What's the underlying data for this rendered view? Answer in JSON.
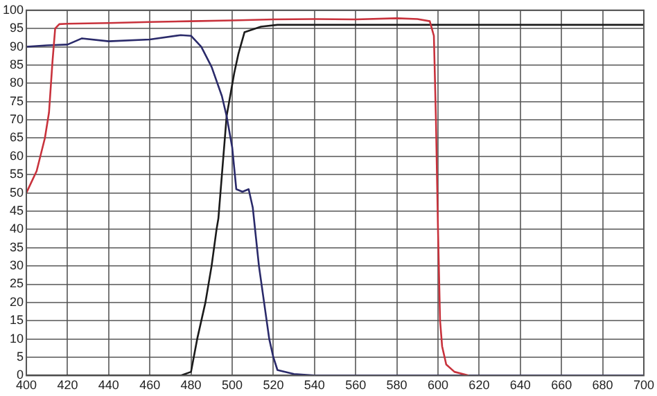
{
  "chart_data": {
    "type": "line",
    "xlim": [
      400,
      700
    ],
    "ylim": [
      0,
      100
    ],
    "xticks": [
      400,
      420,
      440,
      460,
      480,
      500,
      520,
      540,
      560,
      580,
      600,
      620,
      640,
      660,
      680,
      700
    ],
    "yticks": [
      0,
      5,
      10,
      15,
      20,
      25,
      30,
      35,
      40,
      45,
      50,
      55,
      60,
      65,
      70,
      75,
      80,
      85,
      90,
      95,
      100
    ],
    "grid": true,
    "legend": false,
    "marker": "none",
    "line_style": "solid",
    "series": [
      {
        "color": "#c8323c",
        "x": [
          400,
          405,
          409,
          411,
          412.7,
          414,
          416,
          420,
          440,
          460,
          480,
          500,
          520,
          540,
          560,
          580,
          590,
          596,
          598,
          599,
          600,
          601,
          602,
          604,
          608,
          615
        ],
        "values": [
          50,
          56,
          65,
          72,
          86,
          95,
          96.2,
          96.3,
          96.5,
          96.8,
          97,
          97.2,
          97.5,
          97.6,
          97.5,
          97.8,
          97.6,
          97,
          93,
          70,
          40,
          15,
          8,
          3,
          1,
          0
        ]
      },
      {
        "color": "#2a2a6a",
        "x": [
          400,
          410,
          420,
          427,
          440,
          460,
          475,
          480,
          485,
          490,
          495,
          497.3,
          500,
          502,
          505,
          508,
          510,
          513,
          516,
          518,
          520,
          522,
          530,
          540,
          700
        ],
        "values": [
          90,
          90.4,
          90.6,
          92.3,
          91.5,
          92,
          93.2,
          93,
          90,
          84.5,
          76.5,
          71,
          62.5,
          51,
          50.3,
          51,
          46,
          30,
          18,
          10,
          5,
          1.5,
          0.4,
          0,
          0
        ]
      },
      {
        "color": "#1a1a1a",
        "x": [
          400,
          475,
          480,
          483,
          487,
          490,
          492.4,
          493.3,
          497.3,
          501,
          503,
          506,
          514,
          522,
          560,
          600,
          700
        ],
        "values": [
          0,
          0,
          1,
          10,
          20,
          30,
          40,
          43,
          71,
          82.8,
          88,
          94,
          95.5,
          96,
          96,
          96,
          96
        ]
      }
    ]
  }
}
